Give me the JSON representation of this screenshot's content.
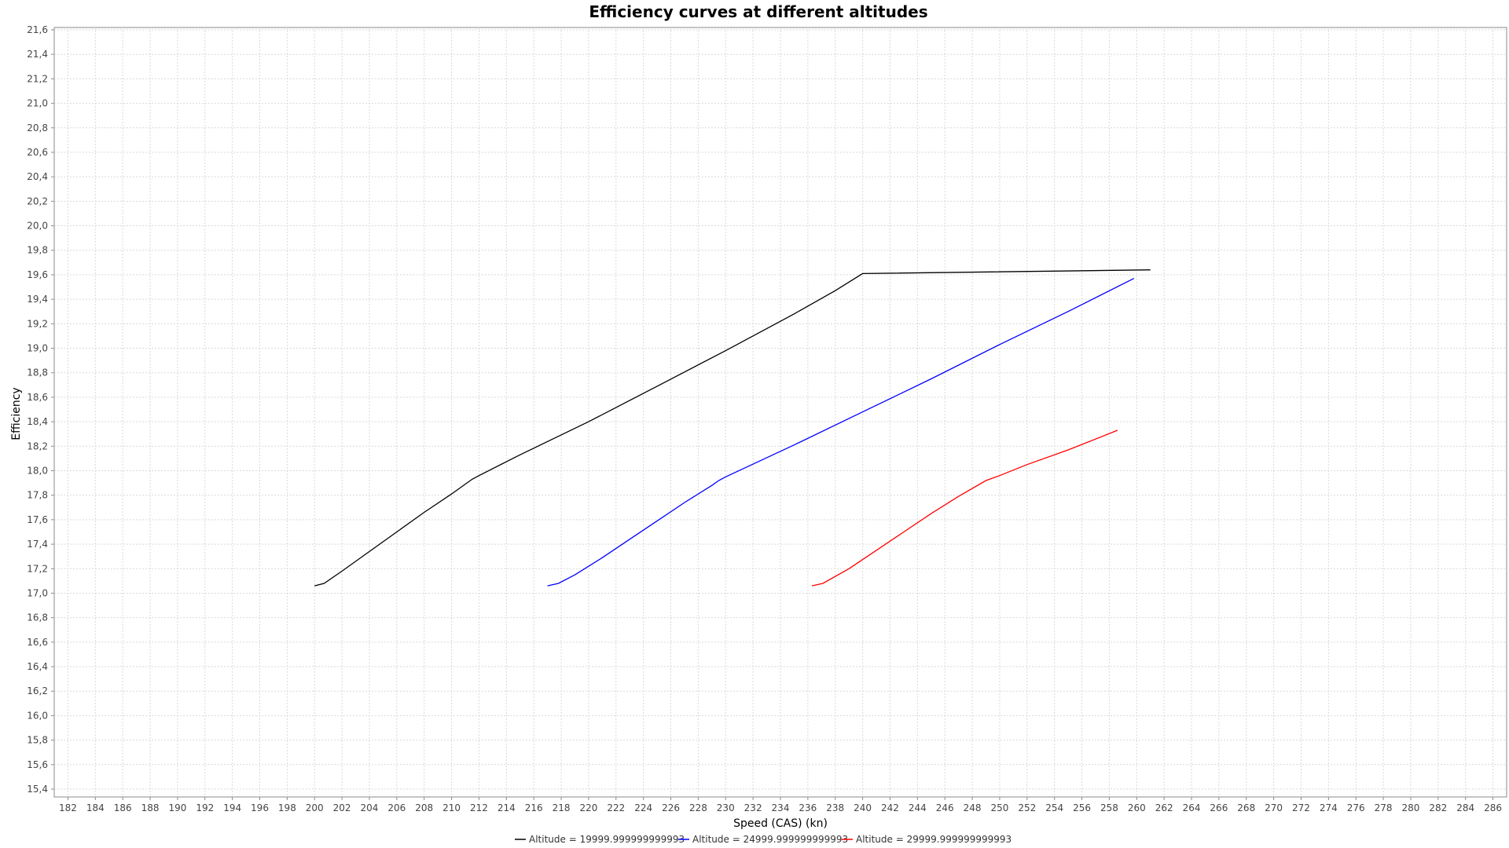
{
  "chart_data": {
    "type": "line",
    "title": "Efficiency curves at different altitudes",
    "xlabel": "Speed (CAS) (kn)",
    "ylabel": "Efficiency",
    "xlim": [
      181,
      287
    ],
    "ylim": [
      15.4,
      21.6
    ],
    "x_ticks": [
      182,
      184,
      186,
      188,
      190,
      192,
      194,
      196,
      198,
      200,
      202,
      204,
      206,
      208,
      210,
      212,
      214,
      216,
      218,
      220,
      222,
      224,
      226,
      228,
      230,
      232,
      234,
      236,
      238,
      240,
      242,
      244,
      246,
      248,
      250,
      252,
      254,
      256,
      258,
      260,
      262,
      264,
      266,
      268,
      270,
      272,
      274,
      276,
      278,
      280,
      282,
      284,
      286
    ],
    "y_ticks": [
      "15,4",
      "15,6",
      "15,8",
      "16,0",
      "16,2",
      "16,4",
      "16,6",
      "16,8",
      "17,0",
      "17,2",
      "17,4",
      "17,6",
      "17,8",
      "18,0",
      "18,2",
      "18,4",
      "18,6",
      "18,8",
      "19,0",
      "19,2",
      "19,4",
      "19,6",
      "19,8",
      "20,0",
      "20,2",
      "20,4",
      "20,6",
      "20,8",
      "21,0",
      "21,2",
      "21,4",
      "21,6"
    ],
    "grid": true,
    "legend_position": "bottom",
    "series": [
      {
        "name": "Altitude = 19999.999999999993",
        "color": "#000000",
        "points": [
          [
            200.0,
            17.06
          ],
          [
            200.7,
            17.08
          ],
          [
            202.0,
            17.18
          ],
          [
            204.0,
            17.34
          ],
          [
            206.0,
            17.5
          ],
          [
            208.0,
            17.66
          ],
          [
            210.0,
            17.81
          ],
          [
            211.5,
            17.93
          ],
          [
            212.0,
            17.96
          ],
          [
            215.0,
            18.13
          ],
          [
            220.0,
            18.4
          ],
          [
            225.0,
            18.69
          ],
          [
            230.0,
            18.98
          ],
          [
            235.0,
            19.28
          ],
          [
            238.0,
            19.47
          ],
          [
            240.0,
            19.61
          ],
          [
            261.0,
            19.64
          ]
        ]
      },
      {
        "name": "Altitude = 24999.999999999993",
        "color": "#0000ff",
        "points": [
          [
            217.0,
            17.06
          ],
          [
            217.8,
            17.08
          ],
          [
            219.0,
            17.15
          ],
          [
            221.0,
            17.29
          ],
          [
            223.0,
            17.44
          ],
          [
            225.0,
            17.59
          ],
          [
            227.0,
            17.74
          ],
          [
            229.0,
            17.88
          ],
          [
            229.5,
            17.92
          ],
          [
            230.0,
            17.95
          ],
          [
            235.0,
            18.21
          ],
          [
            240.0,
            18.48
          ],
          [
            245.0,
            18.75
          ],
          [
            250.0,
            19.03
          ],
          [
            255.0,
            19.3
          ],
          [
            259.8,
            19.57
          ]
        ]
      },
      {
        "name": "Altitude = 29999.999999999993",
        "color": "#ff0000",
        "points": [
          [
            236.3,
            17.06
          ],
          [
            237.1,
            17.08
          ],
          [
            239.0,
            17.2
          ],
          [
            241.0,
            17.35
          ],
          [
            243.0,
            17.5
          ],
          [
            245.0,
            17.65
          ],
          [
            247.0,
            17.79
          ],
          [
            249.0,
            17.92
          ],
          [
            250.0,
            17.96
          ],
          [
            252.0,
            18.05
          ],
          [
            255.0,
            18.17
          ],
          [
            258.6,
            18.33
          ]
        ]
      }
    ]
  }
}
